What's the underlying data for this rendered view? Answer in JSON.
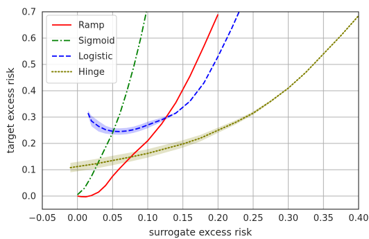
{
  "chart_data": {
    "type": "line",
    "xlabel": "surrogate excess risk",
    "ylabel": "target excess risk",
    "xlim": [
      -0.05,
      0.4
    ],
    "ylim": [
      -0.05,
      0.7
    ],
    "xticks": [
      "−0.05",
      "0.00",
      "0.05",
      "0.10",
      "0.15",
      "0.20",
      "0.25",
      "0.30",
      "0.35",
      "0.40"
    ],
    "yticks": [
      "0.0",
      "0.1",
      "0.2",
      "0.3",
      "0.4",
      "0.5",
      "0.6",
      "0.7"
    ],
    "grid": true,
    "legend_position": "top-left",
    "series": [
      {
        "name": "Ramp",
        "color": "#ff0000",
        "style": "solid",
        "x": [
          0.0,
          0.005,
          0.012,
          0.02,
          0.03,
          0.04,
          0.05,
          0.06,
          0.08,
          0.1,
          0.12,
          0.14,
          0.16,
          0.18,
          0.2
        ],
        "y": [
          0.0,
          -0.002,
          -0.003,
          0.002,
          0.015,
          0.04,
          0.075,
          0.105,
          0.16,
          0.21,
          0.275,
          0.355,
          0.455,
          0.57,
          0.69
        ]
      },
      {
        "name": "Sigmoid",
        "color": "#008000",
        "style": "dashdot",
        "x": [
          0.0,
          0.01,
          0.02,
          0.03,
          0.04,
          0.05,
          0.06,
          0.07,
          0.08,
          0.09,
          0.098
        ],
        "y": [
          0.005,
          0.03,
          0.075,
          0.13,
          0.185,
          0.24,
          0.31,
          0.395,
          0.49,
          0.6,
          0.7
        ]
      },
      {
        "name": "Logistic",
        "color": "#0000ff",
        "style": "dashed",
        "x": [
          0.015,
          0.02,
          0.03,
          0.04,
          0.05,
          0.06,
          0.07,
          0.08,
          0.09,
          0.1,
          0.11,
          0.12,
          0.14,
          0.16,
          0.18,
          0.2,
          0.22,
          0.23
        ],
        "y": [
          0.315,
          0.285,
          0.265,
          0.252,
          0.246,
          0.245,
          0.247,
          0.252,
          0.26,
          0.27,
          0.28,
          0.29,
          0.315,
          0.36,
          0.43,
          0.53,
          0.64,
          0.7
        ],
        "band_half_width": [
          0.01,
          0.02,
          0.02,
          0.015,
          0.012,
          0.012,
          0.012,
          0.012,
          0.012,
          0.012,
          0.01,
          0.008,
          0.003,
          0.002,
          0.001,
          0.001,
          0.001,
          0.001
        ]
      },
      {
        "name": "Hinge",
        "color": "#808000",
        "style": "dotted",
        "x": [
          -0.01,
          0.0,
          0.025,
          0.05,
          0.075,
          0.1,
          0.125,
          0.15,
          0.175,
          0.2,
          0.225,
          0.25,
          0.275,
          0.3,
          0.325,
          0.35,
          0.375,
          0.4
        ],
        "y": [
          0.108,
          0.112,
          0.122,
          0.135,
          0.148,
          0.162,
          0.18,
          0.198,
          0.22,
          0.25,
          0.28,
          0.315,
          0.36,
          0.41,
          0.47,
          0.54,
          0.61,
          0.685
        ],
        "band_half_width": [
          0.018,
          0.018,
          0.018,
          0.018,
          0.017,
          0.016,
          0.015,
          0.014,
          0.012,
          0.01,
          0.008,
          0.006,
          0.004,
          0.003,
          0.002,
          0.002,
          0.002,
          0.002
        ]
      }
    ]
  }
}
